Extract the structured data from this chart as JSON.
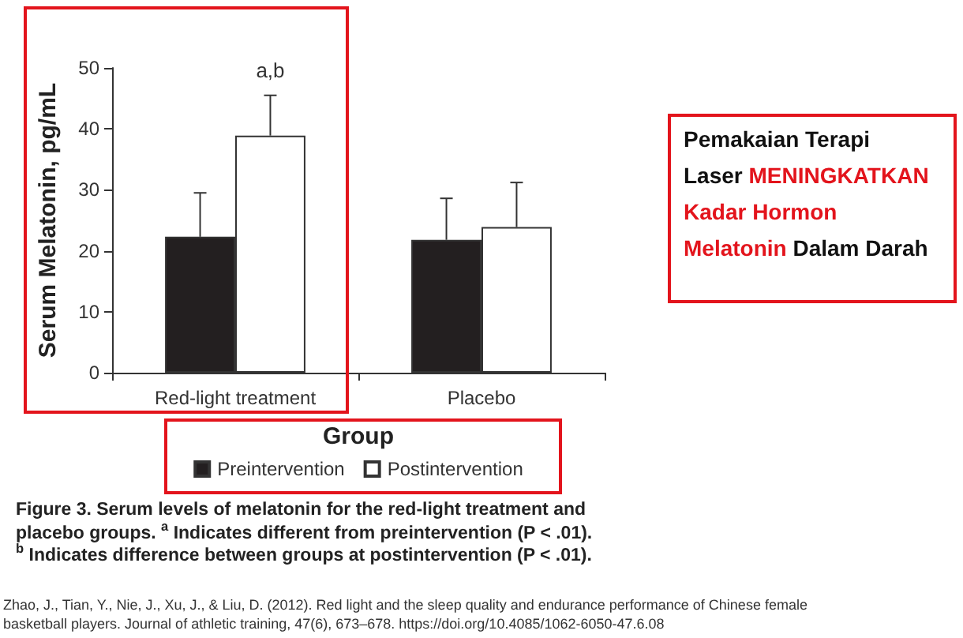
{
  "chart_data": {
    "type": "bar",
    "xlabel": "Group",
    "ylabel": "Serum Melatonin, pg/mL",
    "categories": [
      "Red-light treatment",
      "Placebo"
    ],
    "series": [
      {
        "name": "Preintervention",
        "color": "#231f20",
        "values": [
          22.3,
          21.8
        ],
        "errors": [
          [
            22.3,
            29.5
          ],
          [
            21.8,
            28.6
          ]
        ]
      },
      {
        "name": "Postintervention",
        "color": "#ffffff",
        "values": [
          38.9,
          23.9
        ],
        "errors": [
          [
            38.9,
            45.5
          ],
          [
            23.9,
            31.2
          ]
        ]
      }
    ],
    "ylim": [
      0,
      50
    ],
    "yticks": [
      0,
      10,
      20,
      30,
      40,
      50
    ],
    "grid": false,
    "legend": "bottom",
    "annotations": [
      {
        "text": "a,b",
        "x": "Red-light treatment",
        "y": 38.9
      },
      "Pemakaian Terapi Laser",
      "MENINGKATKAN Kadar Hormon Melatonin",
      "Dalam Darah",
      "Figure 3. Serum levels of melatonin for the red-light treatment and placebo groups. $^{a}$ Indicates different from preintervention (P < .01). $^{b}$ Indicates difference between groups at postintervention (P < .01).",
      "Zhao, J., Tian, Y., Nie, J., Xu, J., & Liu, D. (2012). Red light and the sleep quality and endurance performance of Chinese female basketball players. Journal of athletic training, 47(6), 673–678. https://doi.org/10.4085/1062-6050-47.6.08"
    ]
  }
}
